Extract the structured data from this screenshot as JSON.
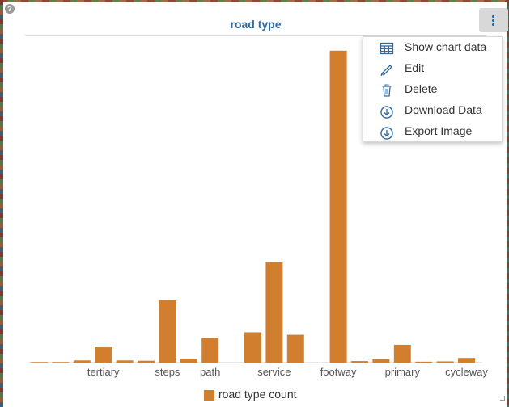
{
  "chart": {
    "title": "road type"
  },
  "menu": {
    "items": [
      {
        "label": "Show chart data",
        "icon": "table-icon"
      },
      {
        "label": "Edit",
        "icon": "pencil-icon"
      },
      {
        "label": "Delete",
        "icon": "trash-icon"
      },
      {
        "label": "Download Data",
        "icon": "download-circle-icon"
      },
      {
        "label": "Export Image",
        "icon": "download-circle-icon"
      }
    ]
  },
  "legend": {
    "label": "road type count",
    "color": "#d17f2f"
  },
  "colors": {
    "bar": "#d17f2f",
    "title": "#2f6aa3",
    "menu_icon": "#2f6aa3"
  },
  "chart_data": {
    "type": "bar",
    "title": "road type",
    "xlabel": "",
    "ylabel": "",
    "ylim": [
      0,
      1000
    ],
    "grid": false,
    "legend_position": "bottom",
    "categories": [
      "",
      "",
      "",
      "tertiary",
      "",
      "",
      "steps",
      "",
      "path",
      "",
      "",
      "service",
      "",
      "",
      "footway",
      "",
      "",
      "primary",
      "",
      "",
      "cycleway"
    ],
    "series": [
      {
        "name": "road type count",
        "values": [
          2,
          2,
          7,
          49,
          7,
          6,
          199,
          13,
          79,
          0,
          97,
          321,
          89,
          0,
          998,
          5,
          11,
          57,
          3,
          4,
          15
        ]
      }
    ]
  }
}
